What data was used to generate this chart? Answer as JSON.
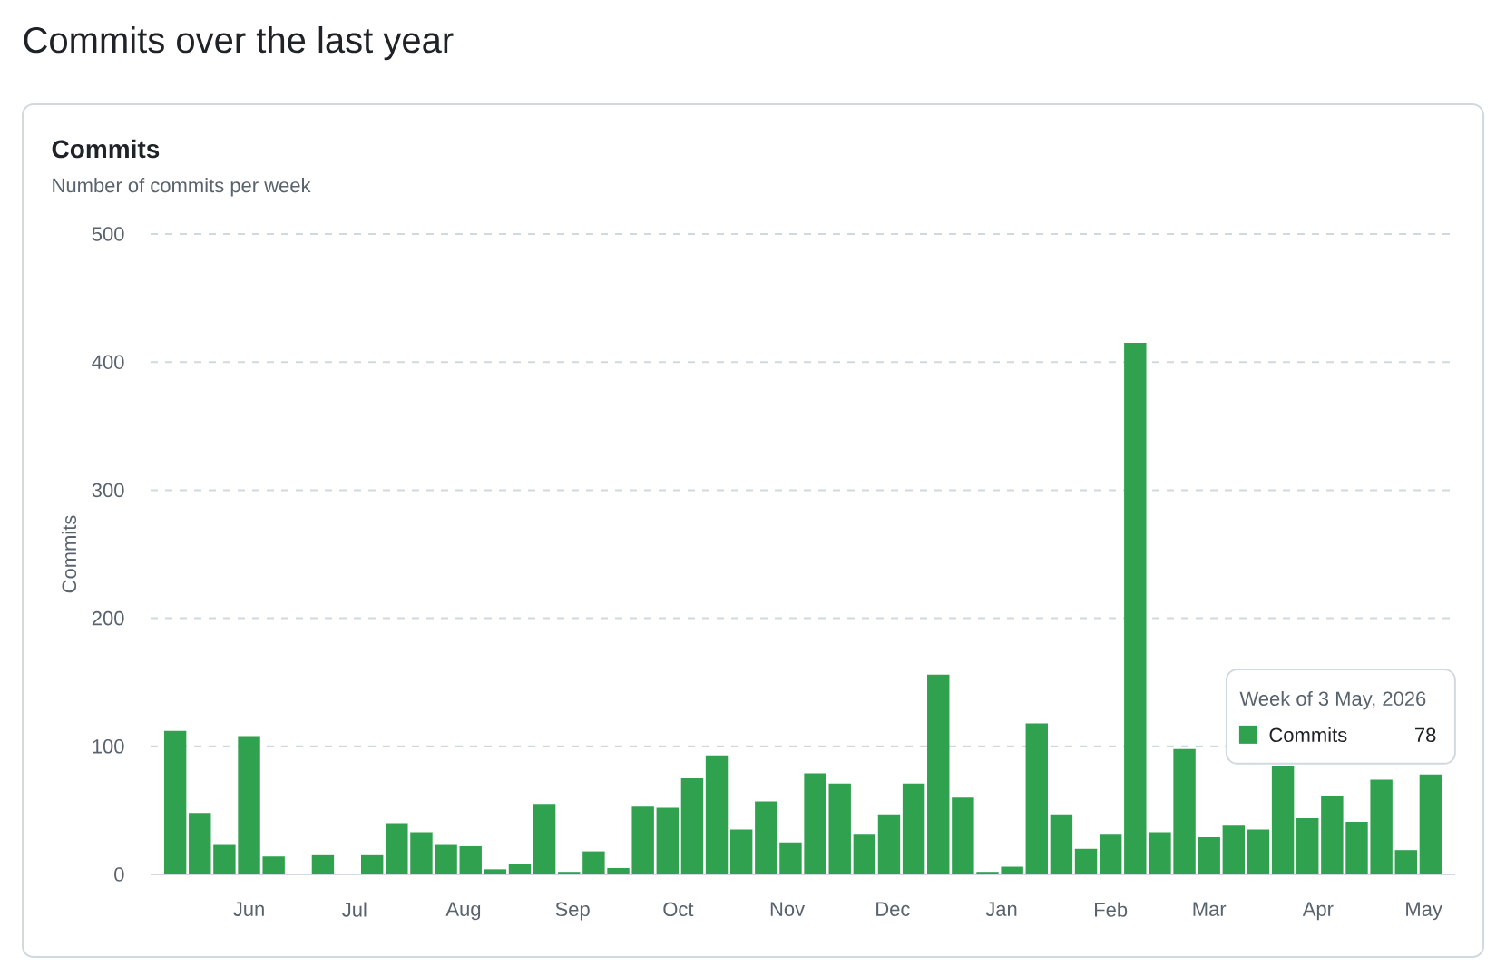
{
  "chart_data": {
    "type": "bar",
    "title": "Commits",
    "subtitle": "Number of commits per week",
    "ylabel": "Commits",
    "annotations": [
      "Commits over the last year",
      "Week of 3 May, 2026"
    ],
    "x": [
      "2025-05-11",
      "2025-05-18",
      "2025-05-25",
      "2025-06-01",
      "2025-06-08",
      "2025-06-15",
      "2025-06-22",
      "2025-06-29",
      "2025-07-06",
      "2025-07-13",
      "2025-07-20",
      "2025-07-27",
      "2025-08-03",
      "2025-08-10",
      "2025-08-17",
      "2025-08-24",
      "2025-08-31",
      "2025-09-07",
      "2025-09-14",
      "2025-09-21",
      "2025-09-28",
      "2025-10-05",
      "2025-10-12",
      "2025-10-19",
      "2025-10-26",
      "2025-11-02",
      "2025-11-09",
      "2025-11-16",
      "2025-11-23",
      "2025-11-30",
      "2025-12-07",
      "2025-12-14",
      "2025-12-21",
      "2025-12-28",
      "2026-01-04",
      "2026-01-11",
      "2026-01-18",
      "2026-01-25",
      "2026-02-01",
      "2026-02-08",
      "2026-02-15",
      "2026-02-22",
      "2026-03-01",
      "2026-03-08",
      "2026-03-15",
      "2026-03-22",
      "2026-03-29",
      "2026-04-05",
      "2026-04-12",
      "2026-04-19",
      "2026-04-26",
      "2026-05-03"
    ],
    "series": [
      {
        "name": "Commits",
        "color": "#30a14e",
        "values": [
          112,
          48,
          23,
          108,
          14,
          0,
          15,
          0,
          15,
          40,
          33,
          23,
          22,
          4,
          8,
          55,
          2,
          18,
          5,
          53,
          52,
          75,
          93,
          35,
          57,
          25,
          79,
          71,
          31,
          47,
          71,
          156,
          60,
          2,
          6,
          118,
          47,
          20,
          31,
          415,
          33,
          98,
          29,
          38,
          35,
          85,
          44,
          61,
          41,
          74,
          19,
          78
        ],
        "value_labels": [
          null,
          null,
          null,
          null,
          null,
          null,
          null,
          null,
          null,
          null,
          null,
          null,
          null,
          null,
          null,
          null,
          null,
          null,
          null,
          null,
          null,
          null,
          null,
          null,
          null,
          null,
          null,
          null,
          null,
          null,
          null,
          null,
          null,
          null,
          null,
          null,
          null,
          null,
          null,
          null,
          null,
          null,
          null,
          null,
          null,
          null,
          null,
          null,
          null,
          null,
          null,
          "78"
        ]
      }
    ],
    "xlim": [
      "2025-05-04",
      "2026-05-10"
    ],
    "xticks": [
      {
        "value": "2025-06-01",
        "label": "Jun"
      },
      {
        "value": "2025-07-01",
        "label": "Jul"
      },
      {
        "value": "2025-08-01",
        "label": "Aug"
      },
      {
        "value": "2025-09-01",
        "label": "Sep"
      },
      {
        "value": "2025-10-01",
        "label": "Oct"
      },
      {
        "value": "2025-11-01",
        "label": "Nov"
      },
      {
        "value": "2025-12-01",
        "label": "Dec"
      },
      {
        "value": "2026-01-01",
        "label": "Jan"
      },
      {
        "value": "2026-02-01",
        "label": "Feb"
      },
      {
        "value": "2026-03-01",
        "label": "Mar"
      },
      {
        "value": "2026-04-01",
        "label": "Apr"
      },
      {
        "value": "2026-05-01",
        "label": "May"
      }
    ],
    "ylim": [
      0,
      500
    ],
    "yticks": [
      0,
      100,
      200,
      300,
      400,
      500
    ],
    "grid": "y",
    "legend": "bottom right"
  }
}
